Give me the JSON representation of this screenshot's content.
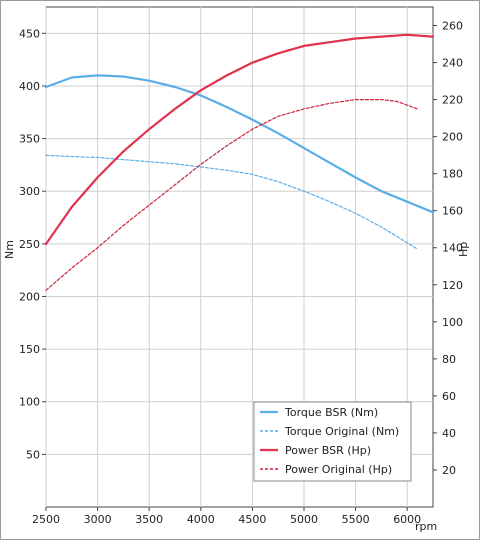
{
  "chart_data": {
    "type": "line",
    "xlabel": "rpm",
    "ylabel_left": "Nm",
    "ylabel_right": "Hp",
    "xlim": [
      2500,
      6250
    ],
    "ylim_left": [
      0,
      475
    ],
    "ylim_right": [
      0,
      270
    ],
    "x_ticks": [
      2500,
      3000,
      3500,
      4000,
      4500,
      5000,
      5500,
      6000
    ],
    "y_left_ticks": [
      50,
      100,
      150,
      200,
      250,
      300,
      350,
      400,
      450
    ],
    "y_right_ticks": [
      20,
      40,
      60,
      80,
      100,
      120,
      140,
      160,
      180,
      200,
      220,
      240,
      260
    ],
    "grid": true,
    "legend_position": "bottom-right",
    "series": [
      {
        "name": "Torque BSR (Nm)",
        "axis": "left",
        "style": "solid",
        "color": "#5aaee8",
        "points": [
          [
            2500,
            399
          ],
          [
            2750,
            408
          ],
          [
            3000,
            410
          ],
          [
            3250,
            409
          ],
          [
            3500,
            405
          ],
          [
            3750,
            399
          ],
          [
            4000,
            391
          ],
          [
            4250,
            380
          ],
          [
            4500,
            368
          ],
          [
            4750,
            355
          ],
          [
            5000,
            341
          ],
          [
            5250,
            327
          ],
          [
            5500,
            313
          ],
          [
            5750,
            300
          ],
          [
            6000,
            290
          ],
          [
            6250,
            280
          ]
        ]
      },
      {
        "name": "Torque Original (Nm)",
        "axis": "left",
        "style": "dashed",
        "color": "#5aaee8",
        "points": [
          [
            2500,
            334
          ],
          [
            2750,
            333
          ],
          [
            3000,
            332
          ],
          [
            3250,
            330
          ],
          [
            3500,
            328
          ],
          [
            3750,
            326
          ],
          [
            4000,
            323
          ],
          [
            4250,
            320
          ],
          [
            4500,
            316
          ],
          [
            4750,
            309
          ],
          [
            5000,
            300
          ],
          [
            5250,
            290
          ],
          [
            5500,
            279
          ],
          [
            5750,
            266
          ],
          [
            6000,
            251
          ],
          [
            6100,
            245
          ]
        ]
      },
      {
        "name": "Power BSR (Hp)",
        "axis": "right",
        "style": "solid",
        "color": "#e0324e",
        "points": [
          [
            2500,
            142
          ],
          [
            2750,
            162
          ],
          [
            3000,
            178
          ],
          [
            3250,
            192
          ],
          [
            3500,
            204
          ],
          [
            3750,
            215
          ],
          [
            4000,
            225
          ],
          [
            4250,
            233
          ],
          [
            4500,
            240
          ],
          [
            4750,
            245
          ],
          [
            5000,
            249
          ],
          [
            5250,
            251
          ],
          [
            5500,
            253
          ],
          [
            5750,
            254
          ],
          [
            6000,
            255
          ],
          [
            6250,
            254
          ]
        ]
      },
      {
        "name": "Power Original (Hp)",
        "axis": "right",
        "style": "dashed",
        "color": "#c8243a",
        "points": [
          [
            2500,
            117
          ],
          [
            2750,
            129
          ],
          [
            3000,
            140
          ],
          [
            3250,
            152
          ],
          [
            3500,
            163
          ],
          [
            3750,
            174
          ],
          [
            4000,
            185
          ],
          [
            4250,
            195
          ],
          [
            4500,
            204
          ],
          [
            4750,
            211
          ],
          [
            5000,
            215
          ],
          [
            5250,
            218
          ],
          [
            5500,
            220
          ],
          [
            5750,
            220
          ],
          [
            5900,
            219
          ],
          [
            6100,
            215
          ]
        ]
      }
    ]
  }
}
